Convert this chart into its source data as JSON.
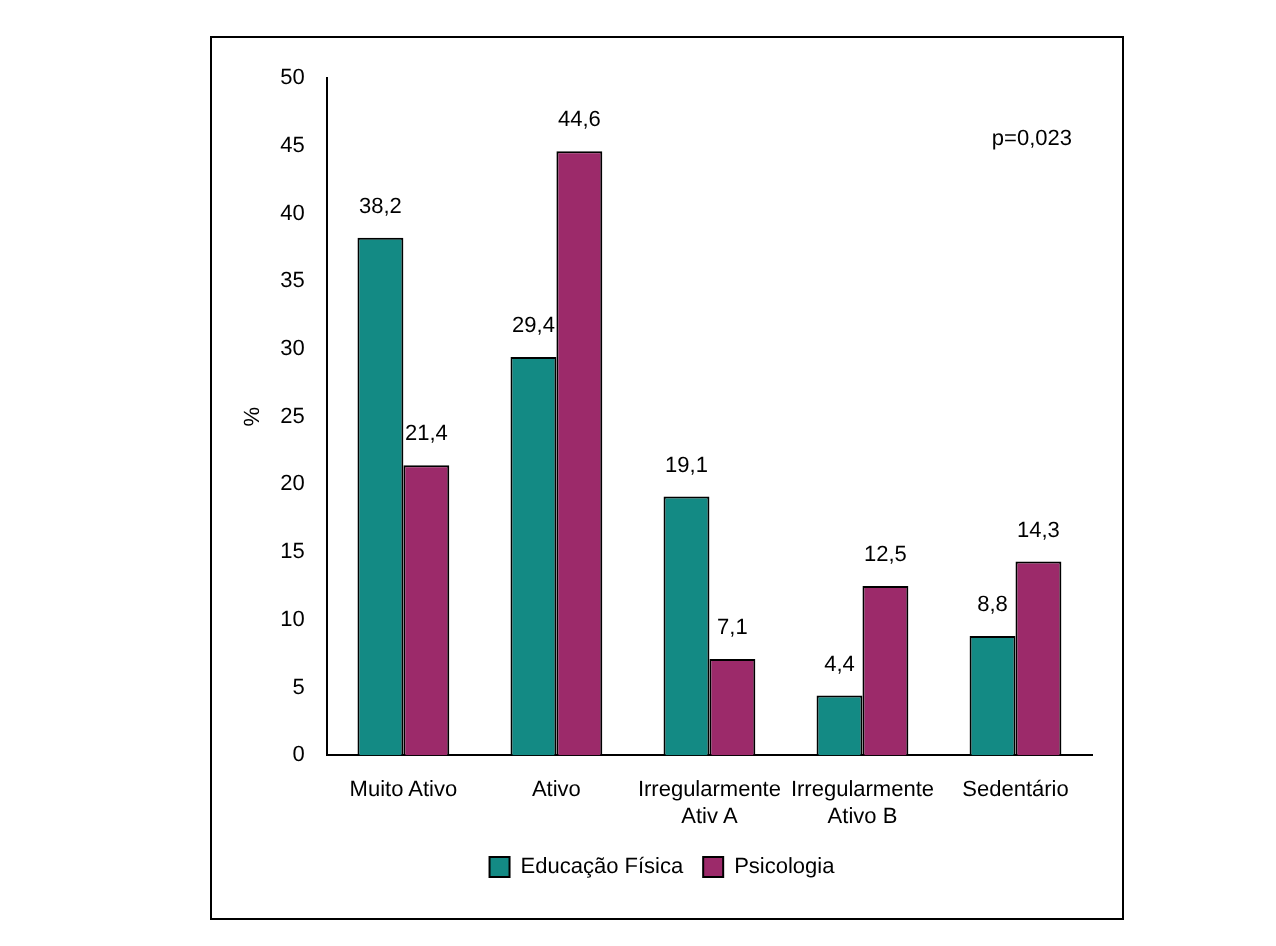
{
  "chart_data": {
    "type": "bar",
    "ylabel": "%",
    "categories": [
      "Muito Ativo",
      "Ativo",
      "Irregularmente\nAtiv A",
      "Irregularmente\nAtivo B",
      "Sedentário"
    ],
    "series": [
      {
        "name": "Educação Física",
        "color": "#138a84",
        "values": [
          38.2,
          29.4,
          19.1,
          4.4,
          8.8
        ],
        "value_labels": [
          "38,2",
          "29,4",
          "19,1",
          "4,4",
          "8,8"
        ]
      },
      {
        "name": "Psicologia",
        "color": "#9c2a6a",
        "values": [
          21.4,
          44.6,
          7.1,
          12.5,
          14.3
        ],
        "value_labels": [
          "21,4",
          "44,6",
          "7,1",
          "12,5",
          "14,3"
        ]
      }
    ],
    "ylim": [
      0,
      50
    ],
    "yticks": [
      0,
      5,
      10,
      15,
      20,
      25,
      30,
      35,
      40,
      45,
      50
    ],
    "grid": false,
    "legend": "bottom",
    "annotations": [
      "p=0,023"
    ]
  }
}
